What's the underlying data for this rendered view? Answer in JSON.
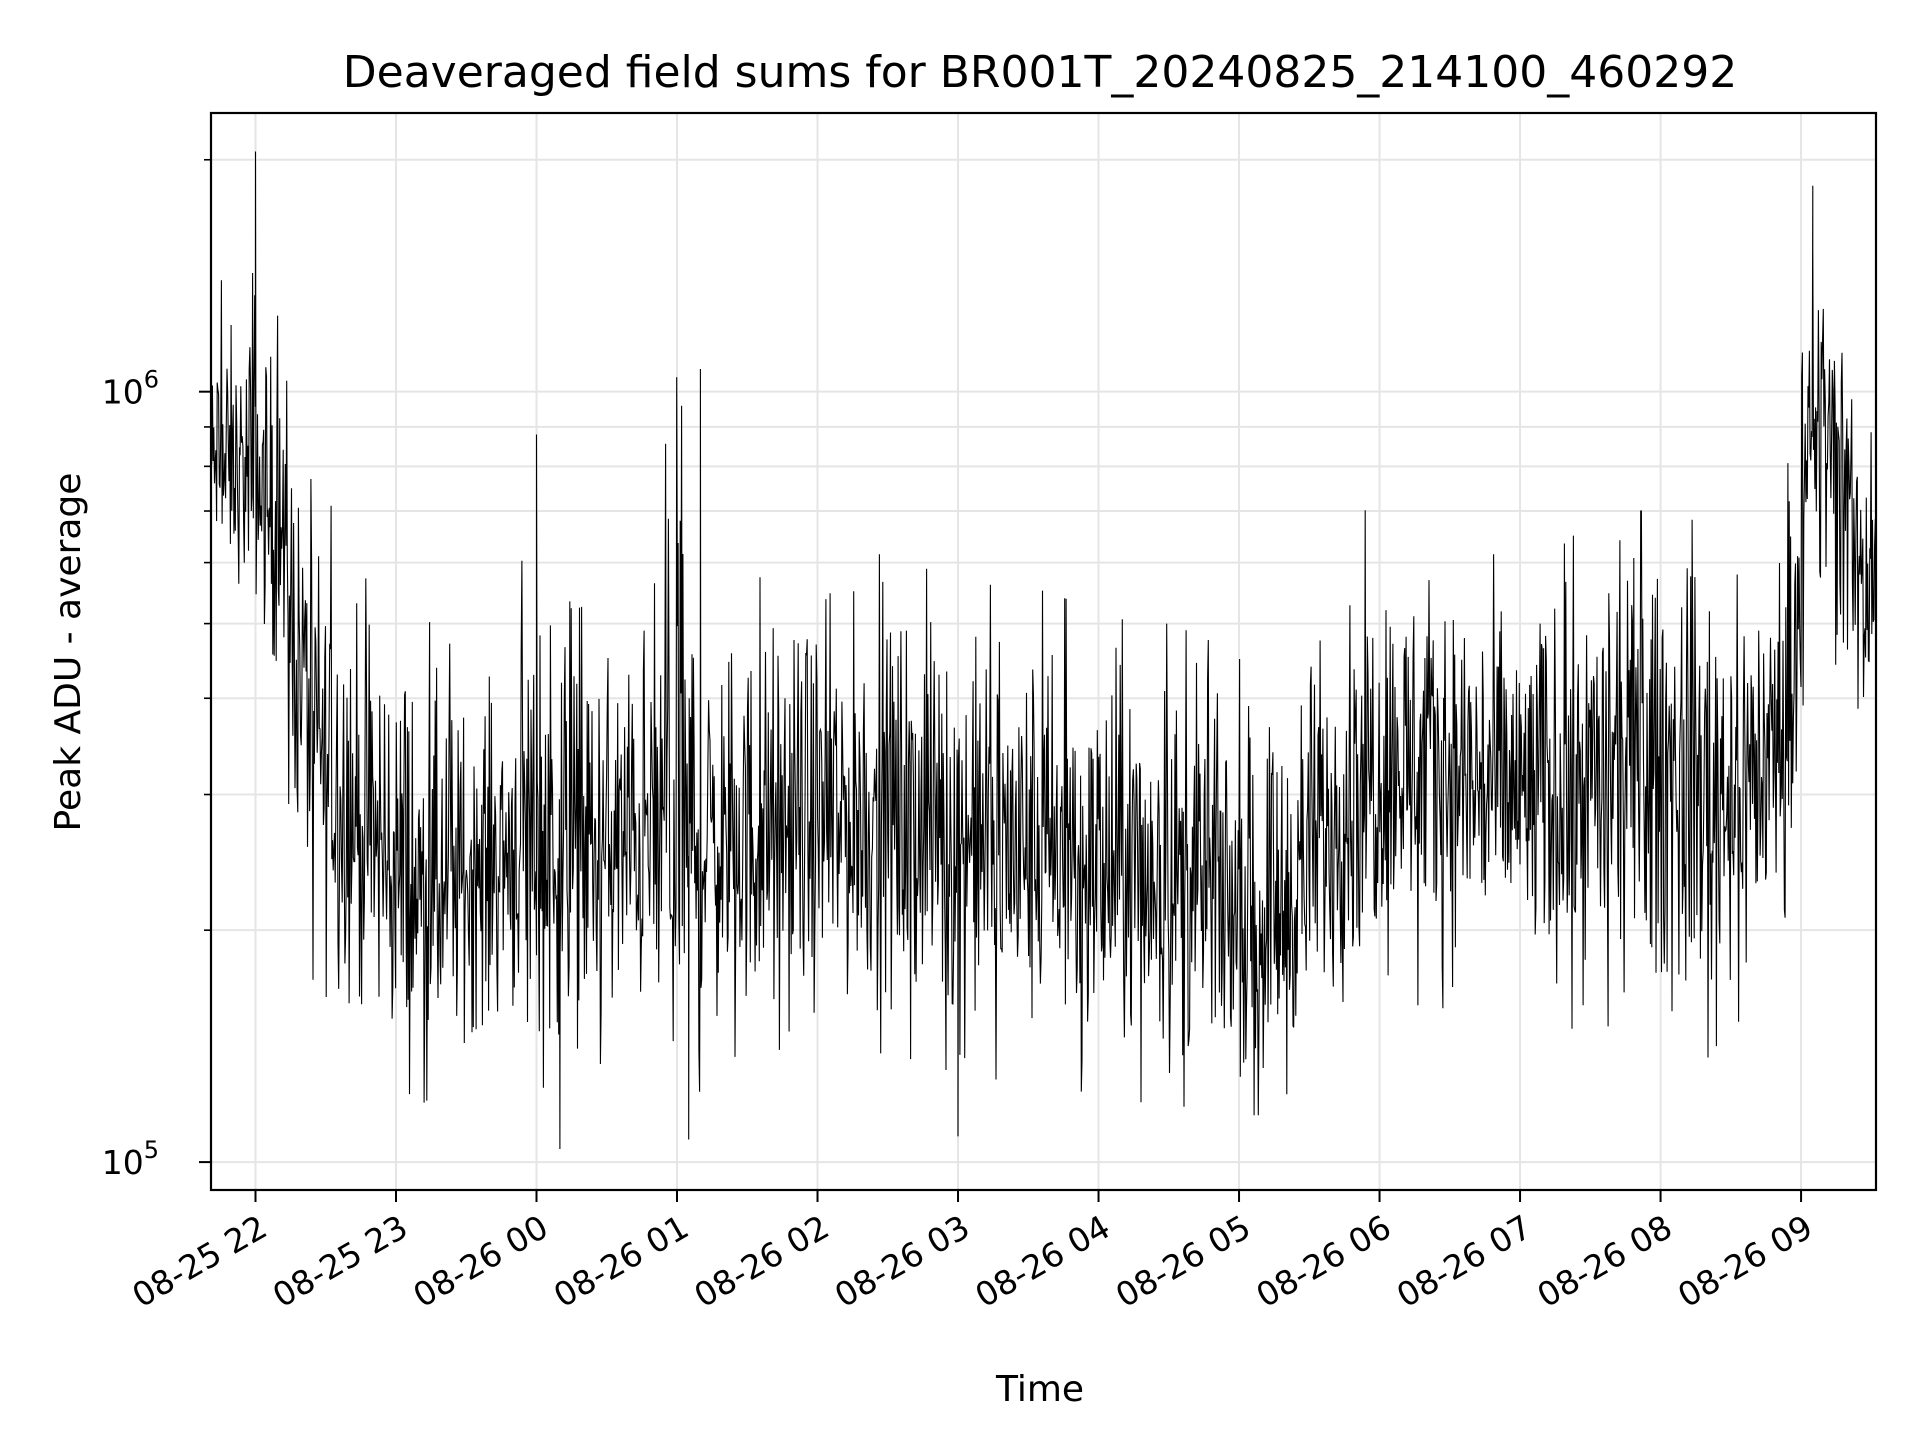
{
  "colors": {
    "background": "#ffffff",
    "line": "#000000",
    "grid": "#e5e5e5",
    "axis": "#000000"
  },
  "chart_data": {
    "type": "line",
    "title": "Deaveraged field sums for BR001T_20240825_214100_460292",
    "xlabel": "Time",
    "ylabel": "Peak ADU - average",
    "yscale": "log",
    "grid": true,
    "legend": "none",
    "xlim": [
      "2024-08-25T21:41",
      "2024-08-26T09:32"
    ],
    "ylim": [
      92000,
      2300000
    ],
    "x_ticks": [
      {
        "value": "2024-08-25T22:00",
        "label": "08-25 22"
      },
      {
        "value": "2024-08-25T23:00",
        "label": "08-25 23"
      },
      {
        "value": "2024-08-26T00:00",
        "label": "08-26 00"
      },
      {
        "value": "2024-08-26T01:00",
        "label": "08-26 01"
      },
      {
        "value": "2024-08-26T02:00",
        "label": "08-26 02"
      },
      {
        "value": "2024-08-26T03:00",
        "label": "08-26 03"
      },
      {
        "value": "2024-08-26T04:00",
        "label": "08-26 04"
      },
      {
        "value": "2024-08-26T05:00",
        "label": "08-26 05"
      },
      {
        "value": "2024-08-26T06:00",
        "label": "08-26 06"
      },
      {
        "value": "2024-08-26T07:00",
        "label": "08-26 07"
      },
      {
        "value": "2024-08-26T08:00",
        "label": "08-26 08"
      },
      {
        "value": "2024-08-26T09:00",
        "label": "08-26 09"
      }
    ],
    "y_major_ticks": [
      {
        "value": 100000,
        "base": "10",
        "exp": "5"
      },
      {
        "value": 1000000,
        "base": "10",
        "exp": "6"
      }
    ],
    "y_minor_ticks": [
      200000,
      300000,
      400000,
      500000,
      600000,
      700000,
      800000,
      900000,
      2000000
    ],
    "x": [
      "2024-08-25T21:41",
      "2024-08-25T21:45",
      "2024-08-25T21:50",
      "2024-08-25T21:55",
      "2024-08-25T22:00",
      "2024-08-25T22:05",
      "2024-08-25T22:10",
      "2024-08-25T22:15",
      "2024-08-25T22:20",
      "2024-08-25T22:25",
      "2024-08-25T22:30",
      "2024-08-25T22:40",
      "2024-08-25T22:50",
      "2024-08-25T23:00",
      "2024-08-25T23:10",
      "2024-08-25T23:20",
      "2024-08-25T23:30",
      "2024-08-25T23:40",
      "2024-08-25T23:50",
      "2024-08-26T00:00",
      "2024-08-26T00:15",
      "2024-08-26T00:30",
      "2024-08-26T00:45",
      "2024-08-26T01:00",
      "2024-08-26T01:15",
      "2024-08-26T01:30",
      "2024-08-26T01:45",
      "2024-08-26T02:00",
      "2024-08-26T02:15",
      "2024-08-26T02:30",
      "2024-08-26T02:45",
      "2024-08-26T03:00",
      "2024-08-26T03:15",
      "2024-08-26T03:30",
      "2024-08-26T03:45",
      "2024-08-26T04:00",
      "2024-08-26T04:15",
      "2024-08-26T04:30",
      "2024-08-26T04:45",
      "2024-08-26T05:00",
      "2024-08-26T05:10",
      "2024-08-26T05:20",
      "2024-08-26T05:30",
      "2024-08-26T05:40",
      "2024-08-26T05:50",
      "2024-08-26T06:00",
      "2024-08-26T06:15",
      "2024-08-26T06:30",
      "2024-08-26T06:45",
      "2024-08-26T07:00",
      "2024-08-26T07:15",
      "2024-08-26T07:30",
      "2024-08-26T07:45",
      "2024-08-26T08:00",
      "2024-08-26T08:15",
      "2024-08-26T08:30",
      "2024-08-26T08:45",
      "2024-08-26T08:55",
      "2024-08-26T09:00",
      "2024-08-26T09:05",
      "2024-08-26T09:10",
      "2024-08-26T09:15",
      "2024-08-26T09:20",
      "2024-08-26T09:25",
      "2024-08-26T09:32"
    ],
    "y_trend": [
      800000,
      780000,
      760000,
      760000,
      740000,
      700000,
      650000,
      560000,
      430000,
      370000,
      320000,
      290000,
      260000,
      235000,
      215000,
      215000,
      235000,
      245000,
      255000,
      255000,
      250000,
      250000,
      255000,
      260000,
      258000,
      255000,
      260000,
      270000,
      275000,
      280000,
      275000,
      265000,
      255000,
      245000,
      240000,
      238000,
      235000,
      232000,
      225000,
      210000,
      205000,
      215000,
      245000,
      275000,
      305000,
      330000,
      330000,
      320000,
      310000,
      300000,
      300000,
      310000,
      320000,
      330000,
      320000,
      310000,
      330000,
      380000,
      560000,
      860000,
      960000,
      880000,
      760000,
      620000,
      570000
    ],
    "y_envelope_high": [
      1200000,
      1400000,
      1350000,
      1300000,
      2000000,
      1300000,
      1250000,
      950000,
      800000,
      760000,
      730000,
      650000,
      600000,
      580000,
      520000,
      480000,
      450000,
      470000,
      480000,
      880000,
      520000,
      540000,
      560000,
      1050000,
      520000,
      560000,
      600000,
      580000,
      600000,
      620000,
      590000,
      580000,
      560000,
      560000,
      540000,
      520000,
      500000,
      500000,
      480000,
      450000,
      440000,
      470000,
      520000,
      620000,
      700000,
      720000,
      660000,
      640000,
      620000,
      600000,
      620000,
      680000,
      700000,
      700000,
      680000,
      640000,
      650000,
      820000,
      1500000,
      1850000,
      1550000,
      1200000,
      1050000,
      950000,
      860000
    ],
    "y_envelope_low": [
      600000,
      560000,
      540000,
      520000,
      500000,
      430000,
      360000,
      280000,
      200000,
      170000,
      150000,
      140000,
      130000,
      120000,
      118000,
      125000,
      130000,
      135000,
      140000,
      110000,
      130000,
      135000,
      140000,
      105000,
      135000,
      138000,
      140000,
      145000,
      140000,
      138000,
      135000,
      130000,
      128000,
      128000,
      125000,
      122000,
      120000,
      118000,
      118000,
      115000,
      115000,
      122000,
      135000,
      145000,
      155000,
      160000,
      160000,
      158000,
      150000,
      148000,
      148000,
      150000,
      150000,
      125000,
      130000,
      150000,
      160000,
      220000,
      380000,
      450000,
      400000,
      350000,
      320000,
      300000,
      300000
    ],
    "notable_spikes": [
      {
        "x": "2024-08-25T22:00",
        "y": 2050000
      },
      {
        "x": "2024-08-26T00:00",
        "y": 880000
      },
      {
        "x": "2024-08-26T01:10",
        "y": 1070000
      },
      {
        "x": "2024-08-26T00:10",
        "y": 104000
      },
      {
        "x": "2024-08-26T01:05",
        "y": 107000
      },
      {
        "x": "2024-08-26T03:00",
        "y": 108000
      },
      {
        "x": "2024-08-26T09:05",
        "y": 1850000
      }
    ]
  }
}
